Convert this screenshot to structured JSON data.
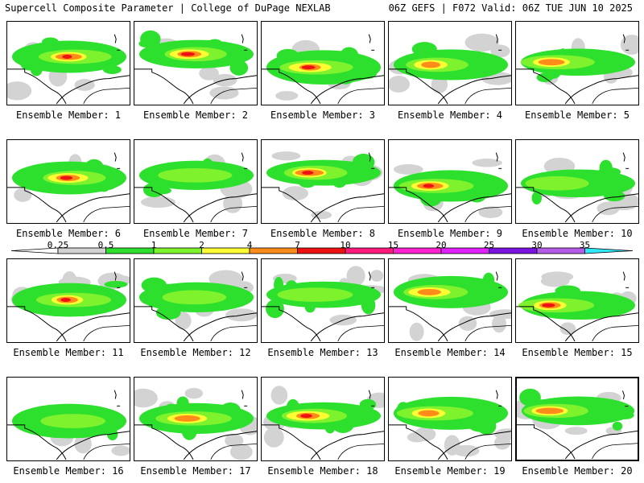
{
  "header": {
    "left": "Supercell Composite Parameter | College of DuPage NEXLAB",
    "right": "06Z GEFS | F072 Valid: 06Z TUE JUN 10 2025"
  },
  "colorbar": {
    "labels": [
      "0.25",
      "0.5",
      "1",
      "2",
      "4",
      "7",
      "10",
      "15",
      "20",
      "25",
      "30",
      "35"
    ],
    "colors": [
      "#d3d3d3",
      "#2ee02e",
      "#7ff22e",
      "#fdfd33",
      "#ff8c1a",
      "#ee1111",
      "#ff1a7c",
      "#ff20d0",
      "#e120ff",
      "#7a12e0",
      "#b45ce8",
      "#30e8f8"
    ]
  },
  "field_colors": {
    "light": "#d3d3d3",
    "low": "#2ee02e",
    "mid": "#7ff22e",
    "yellow": "#fdfd33",
    "orange": "#ff8c1a",
    "red": "#ee1111"
  },
  "panels": [
    {
      "caption": "Ensemble Member: 1",
      "level": 3
    },
    {
      "caption": "Ensemble Member: 2",
      "level": 3
    },
    {
      "caption": "Ensemble Member: 3",
      "level": 3
    },
    {
      "caption": "Ensemble Member: 4",
      "level": 2
    },
    {
      "caption": "Ensemble Member: 5",
      "level": 2
    },
    {
      "caption": "Ensemble Member: 6",
      "level": 3
    },
    {
      "caption": "Ensemble Member: 7",
      "level": 1
    },
    {
      "caption": "Ensemble Member: 8",
      "level": 3
    },
    {
      "caption": "Ensemble Member: 9",
      "level": 3
    },
    {
      "caption": "Ensemble Member: 10",
      "level": 1
    },
    {
      "caption": "Ensemble Member: 11",
      "level": 3
    },
    {
      "caption": "Ensemble Member: 12",
      "level": 1
    },
    {
      "caption": "Ensemble Member: 13",
      "level": 1
    },
    {
      "caption": "Ensemble Member: 14",
      "level": 2
    },
    {
      "caption": "Ensemble Member: 15",
      "level": 3
    },
    {
      "caption": "Ensemble Member: 16",
      "level": 1
    },
    {
      "caption": "Ensemble Member: 17",
      "level": 2
    },
    {
      "caption": "Ensemble Member: 18",
      "level": 3
    },
    {
      "caption": "Ensemble Member: 19",
      "level": 2
    },
    {
      "caption": "Ensemble Member: 20",
      "level": 2,
      "highlighted": true
    }
  ]
}
